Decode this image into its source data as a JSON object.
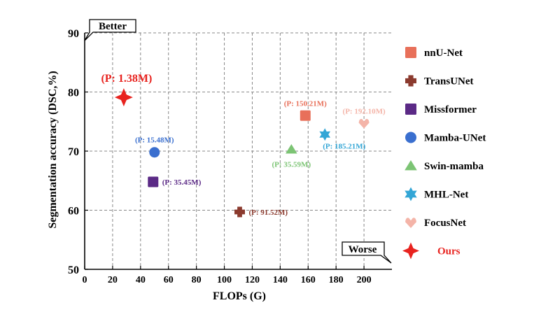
{
  "chart_data": {
    "type": "scatter",
    "xlabel": "FLOPs (G)",
    "ylabel": "Segmentation accuracy (DSC,%)",
    "xlim": [
      0,
      220
    ],
    "ylim": [
      50,
      90
    ],
    "xticks": [
      0,
      20,
      40,
      60,
      80,
      100,
      120,
      140,
      160,
      180,
      200
    ],
    "yticks": [
      50,
      60,
      70,
      80,
      90
    ],
    "grid": true,
    "legend_position": "right",
    "series": [
      {
        "name": "nnU-Net",
        "marker": "square",
        "color": "#E8705A",
        "x": 158,
        "y": 76.0,
        "label": "(P: 150.21M)",
        "label_pos": "above"
      },
      {
        "name": "TransUNet",
        "marker": "cross",
        "color": "#8B3A2E",
        "x": 111,
        "y": 59.7,
        "label": "(P: 91.52M)",
        "label_pos": "right"
      },
      {
        "name": "Missformer",
        "marker": "square",
        "color": "#5B2A86",
        "x": 49,
        "y": 64.8,
        "label": "(P: 35.45M)",
        "label_pos": "right"
      },
      {
        "name": "Mamba-UNet",
        "marker": "circle",
        "color": "#3A6FCF",
        "x": 50,
        "y": 69.8,
        "label": "(P: 15.48M)",
        "label_pos": "above"
      },
      {
        "name": "Swin-mamba",
        "marker": "triangle",
        "color": "#7CC474",
        "x": 148,
        "y": 70.3,
        "label": "(P: 35.59M)",
        "label_pos": "below"
      },
      {
        "name": "MHL-Net",
        "marker": "star6",
        "color": "#33A6D6",
        "x": 172,
        "y": 72.8,
        "label": "(P: 185.21M)",
        "label_pos": "belowright"
      },
      {
        "name": "FocusNet",
        "marker": "heart",
        "color": "#F4B4A8",
        "x": 200,
        "y": 74.7,
        "label": "(P: 192.10M)",
        "label_pos": "above"
      },
      {
        "name": "Ours",
        "marker": "star4",
        "color": "#E8231F",
        "x": 28,
        "y": 79.1,
        "label": "(P: 1.38M)",
        "label_pos": "abovebig"
      }
    ],
    "annotations": {
      "better": "Better",
      "worse": "Worse"
    }
  }
}
